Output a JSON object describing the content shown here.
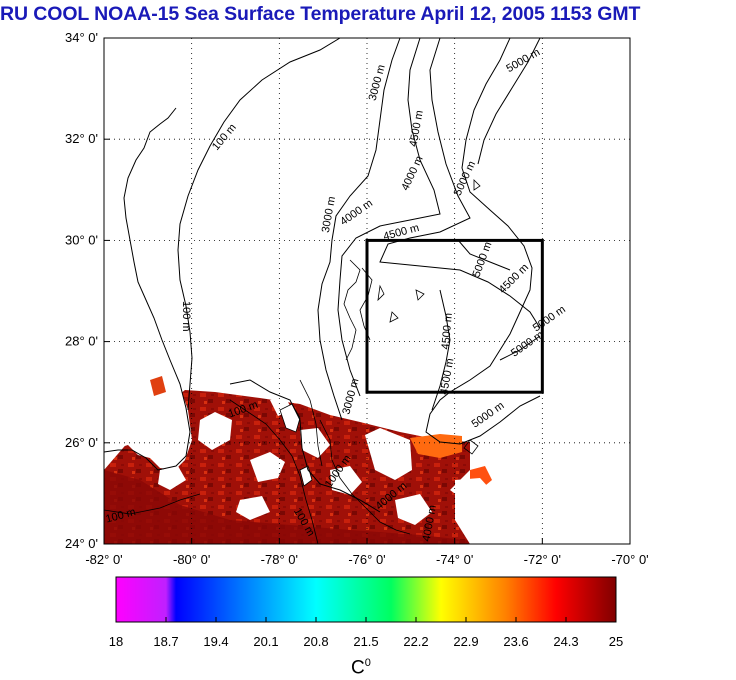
{
  "title": "RU COOL  NOAA-15 Sea Surface Temperature April 12, 2005 1153 GMT",
  "map": {
    "lon_range": [
      -82,
      -70
    ],
    "lat_range": [
      24,
      34
    ],
    "lat_ticks": [
      "34° 0'",
      "32° 0'",
      "30° 0'",
      "28° 0'",
      "26° 0'",
      "24° 0'"
    ],
    "lon_ticks": [
      "-82° 0'",
      "-80° 0'",
      "-78° 0'",
      "-76° 0'",
      "-74° 0'",
      "-72° 0'",
      "-70° 0'"
    ],
    "grid": "dotted",
    "study_box": {
      "lon": [
        -76,
        -72
      ],
      "lat": [
        27,
        30
      ]
    },
    "contour_labels": [
      {
        "text": "3000 m",
        "lon": -75.7,
        "lat": 33.1,
        "rot": -75
      },
      {
        "text": "5000 m",
        "lon": -72.4,
        "lat": 33.5,
        "rot": -30
      },
      {
        "text": "4500 m",
        "lon": -74.8,
        "lat": 32.2,
        "rot": -80
      },
      {
        "text": "100 m",
        "lon": -79.2,
        "lat": 32.0,
        "rot": -50
      },
      {
        "text": "4000 m",
        "lon": -74.9,
        "lat": 31.3,
        "rot": -65
      },
      {
        "text": "5000 m",
        "lon": -73.7,
        "lat": 31.2,
        "rot": -65
      },
      {
        "text": "3000 m",
        "lon": -76.8,
        "lat": 30.5,
        "rot": -80
      },
      {
        "text": "4000 m",
        "lon": -76.2,
        "lat": 30.5,
        "rot": -35
      },
      {
        "text": "4500 m",
        "lon": -75.2,
        "lat": 30.1,
        "rot": -15
      },
      {
        "text": "5000 m",
        "lon": -73.3,
        "lat": 29.6,
        "rot": -70
      },
      {
        "text": "4500 m",
        "lon": -72.6,
        "lat": 29.2,
        "rot": -45
      },
      {
        "text": "100 m",
        "lon": -80.2,
        "lat": 28.5,
        "rot": 90
      },
      {
        "text": "5000 m",
        "lon": -72.3,
        "lat": 27.9,
        "rot": -35
      },
      {
        "text": "5000 m",
        "lon": -71.8,
        "lat": 28.4,
        "rot": -35
      },
      {
        "text": "4500 m",
        "lon": -74.1,
        "lat": 28.2,
        "rot": -85
      },
      {
        "text": "4500 m",
        "lon": -74.1,
        "lat": 27.3,
        "rot": -80
      },
      {
        "text": "5000 m",
        "lon": -73.2,
        "lat": 26.5,
        "rot": -35
      },
      {
        "text": "3000 m",
        "lon": -76.3,
        "lat": 26.9,
        "rot": -75
      },
      {
        "text": "100 m",
        "lon": -78.8,
        "lat": 26.6,
        "rot": -20
      },
      {
        "text": "1000 m",
        "lon": -76.6,
        "lat": 25.4,
        "rot": -55
      },
      {
        "text": "4000 m",
        "lon": -75.4,
        "lat": 24.9,
        "rot": -40
      },
      {
        "text": "4000 m",
        "lon": -74.5,
        "lat": 24.4,
        "rot": -80
      },
      {
        "text": "100 m",
        "lon": -81.6,
        "lat": 24.5,
        "rot": -15
      },
      {
        "text": "100 m",
        "lon": -77.5,
        "lat": 24.4,
        "rot": 60
      }
    ]
  },
  "colorbar": {
    "min": 18,
    "max": 25,
    "tick_labels": [
      "18",
      "18.7",
      "19.4",
      "20.1",
      "20.8",
      "21.5",
      "22.2",
      "22.9",
      "23.6",
      "24.3",
      "25"
    ],
    "unit_base": "C",
    "unit_sup": "0",
    "stops": [
      "#ff00ff",
      "#0000ff",
      "#00ffff",
      "#00ff00",
      "#ffff00",
      "#ff8000",
      "#ff0000",
      "#8b0000"
    ]
  }
}
